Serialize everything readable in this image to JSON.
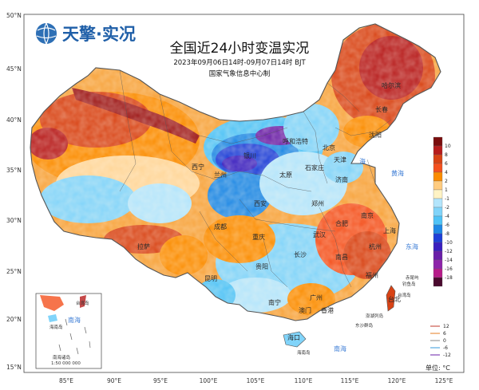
{
  "logo": {
    "brand": "天擎·实况"
  },
  "title": {
    "main": "全国近24小时变温实况",
    "period": "2023年09月06日14时-09月07日14时 BJT",
    "producer": "国家气象信息中心制"
  },
  "axes": {
    "lat_labels": [
      "50°N",
      "45°N",
      "40°N",
      "35°N",
      "30°N",
      "25°N",
      "20°N",
      "15°N"
    ],
    "lon_labels": [
      "85°E",
      "90°E",
      "95°E",
      "100°E",
      "105°E",
      "110°E",
      "115°E",
      "120°E",
      "125°E"
    ]
  },
  "colorbar": {
    "ticks": [
      "10",
      "8",
      "6",
      "4",
      "2",
      "1",
      "-1",
      "-2",
      "-4",
      "-6",
      "-8",
      "-10",
      "-12",
      "-14",
      "-16",
      "-18"
    ],
    "colors": [
      "#7a0d0d",
      "#b71c1c",
      "#d84315",
      "#f4511e",
      "#fb8c00",
      "#ffcc80",
      "#fff3c4",
      "#b3e5fc",
      "#81d4fa",
      "#4fc3f7",
      "#1e88e5",
      "#1e3fd8",
      "#3a1fbf",
      "#6a1fa8",
      "#8e24aa",
      "#b71c8a",
      "#4a0a2e"
    ]
  },
  "contour_legend": [
    "12",
    "6",
    "0",
    "-6",
    "-12"
  ],
  "unit": "单位: °C",
  "cities": [
    "哈尔滨",
    "长春",
    "沈阳",
    "北京",
    "天津",
    "石家庄",
    "太原",
    "呼和浩特",
    "济南",
    "郑州",
    "西安",
    "兰州",
    "银川",
    "西宁",
    "南京",
    "合肥",
    "上海",
    "杭州",
    "武汉",
    "长沙",
    "南昌",
    "福州",
    "台北",
    "成都",
    "重庆",
    "贵阳",
    "昆明",
    "南宁",
    "广州",
    "香港",
    "澳门",
    "海口",
    "拉萨"
  ],
  "seas": [
    "黄海",
    "东海",
    "南海",
    "海"
  ],
  "islands": [
    "赤尾屿",
    "钓鱼岛",
    "东沙群岛",
    "澎湖列岛",
    "台湾岛",
    "海南岛"
  ],
  "inset": {
    "labels": [
      "台湾岛",
      "南海",
      "海南岛",
      "南海诸岛"
    ],
    "scale": "1:50 000 000"
  }
}
